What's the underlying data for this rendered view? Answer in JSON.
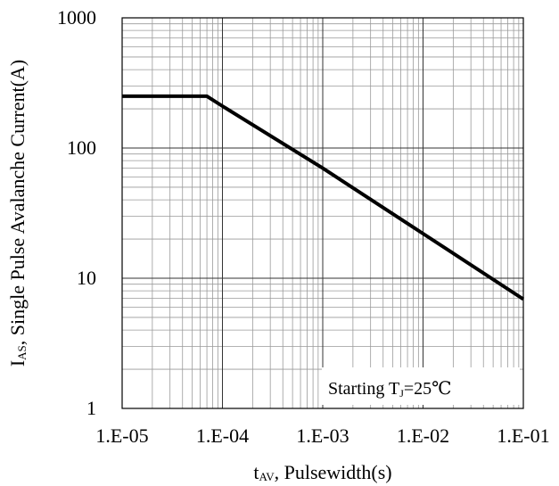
{
  "chart_data": {
    "type": "line",
    "title": "",
    "xscale": "log",
    "yscale": "log",
    "xlim": [
      1e-05,
      0.1
    ],
    "ylim": [
      1,
      1000
    ],
    "grid": true,
    "x_ticks": [
      {
        "value": 1e-05,
        "label": "1.E-05"
      },
      {
        "value": 0.0001,
        "label": "1.E-04"
      },
      {
        "value": 0.001,
        "label": "1.E-03"
      },
      {
        "value": 0.01,
        "label": "1.E-02"
      },
      {
        "value": 0.1,
        "label": "1.E-01"
      }
    ],
    "y_ticks": [
      {
        "value": 1,
        "label": "1"
      },
      {
        "value": 10,
        "label": "10"
      },
      {
        "value": 100,
        "label": "100"
      },
      {
        "value": 1000,
        "label": "1000"
      }
    ],
    "xlabel": {
      "main": "t",
      "sub": "AV",
      "rest": ", Pulsewidth(s)"
    },
    "ylabel": {
      "main": "I",
      "sub": "AS",
      "rest": ", Single Pulse Avalanche Current(A)"
    },
    "series": [
      {
        "x": [
          1e-05,
          7e-05,
          0.0001,
          0.001,
          0.01,
          0.1
        ],
        "y": [
          250,
          250,
          210,
          70,
          22,
          6.9
        ]
      }
    ],
    "annotation": {
      "main": "Starting T",
      "sub": "J",
      "rest": "=25℃",
      "position": "bottom-right"
    }
  }
}
